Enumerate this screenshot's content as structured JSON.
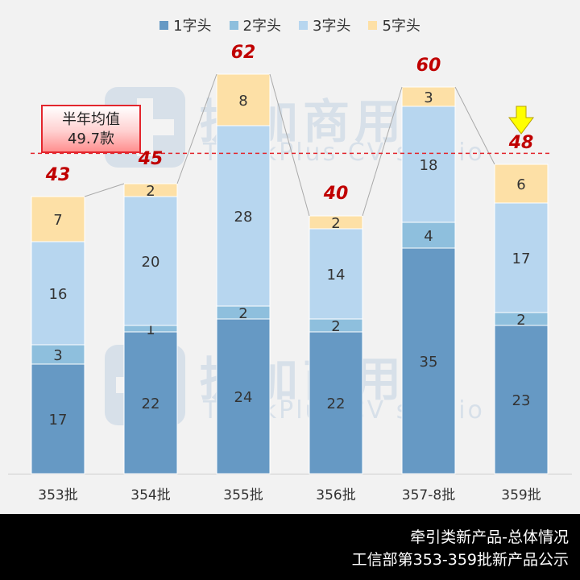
{
  "chart_data": {
    "type": "bar",
    "stacked": true,
    "categories": [
      "353批",
      "354批",
      "355批",
      "356批",
      "357-8批",
      "359批"
    ],
    "series": [
      {
        "name": "1字头",
        "color": "#6699c4",
        "values": [
          17,
          22,
          24,
          22,
          35,
          23
        ]
      },
      {
        "name": "2字头",
        "color": "#8ebfdd",
        "values": [
          3,
          1,
          2,
          2,
          4,
          2
        ]
      },
      {
        "name": "3字头",
        "color": "#b7d6ef",
        "values": [
          16,
          20,
          28,
          14,
          18,
          17
        ]
      },
      {
        "name": "5字头",
        "color": "#fde0a6",
        "values": [
          7,
          2,
          8,
          2,
          3,
          6
        ]
      }
    ],
    "totals": [
      "43",
      "45",
      "62",
      "40",
      "60",
      "48"
    ],
    "average": {
      "value": 49.7,
      "label_line1": "半年均值",
      "label_line2": "49.7款"
    },
    "ylim": [
      0,
      70
    ],
    "legend_position": "top",
    "grid": false
  },
  "watermark": {
    "cn": "提加商用车",
    "en": "TruckPlus CV studio"
  },
  "footer": {
    "line1": "牵引类新产品-总体情况",
    "line2": "工信部第353-359批新产品公示"
  },
  "colors": {
    "total_label": "#c00000",
    "average_line": "#e3262d",
    "arrow": "#ffff00"
  },
  "icons": {
    "arrow": "down-arrow-icon"
  }
}
